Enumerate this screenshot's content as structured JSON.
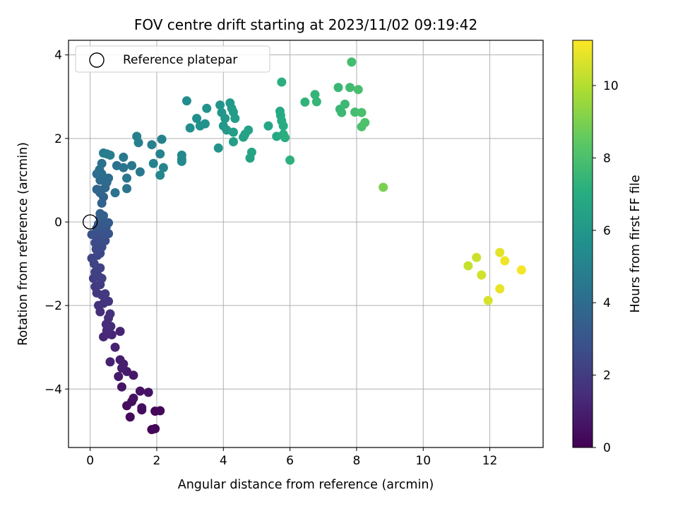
{
  "chart_data": {
    "type": "scatter",
    "title": "FOV centre drift starting at 2023/11/02 09:19:42",
    "xlabel": "Angular distance from reference (arcmin)",
    "ylabel": "Rotation from reference (arcmin)",
    "colorbar_label": "Hours from first FF file",
    "xlim": [
      -0.65,
      13.6
    ],
    "ylim": [
      -5.4,
      4.35
    ],
    "x_ticks": [
      0,
      2,
      4,
      6,
      8,
      10,
      12
    ],
    "y_ticks": [
      -4,
      -2,
      0,
      2,
      4
    ],
    "colorbar_range": [
      0,
      11.25
    ],
    "colorbar_ticks": [
      0,
      2,
      4,
      6,
      8,
      10
    ],
    "colormap": "viridis",
    "grid": true,
    "legend": {
      "placement": "top-left",
      "entries": [
        "Reference platepar"
      ]
    },
    "reference_point": {
      "x": 0.0,
      "y": 0.0
    },
    "points": [
      {
        "x": 1.85,
        "y": -4.97,
        "h": 0.1
      },
      {
        "x": 1.95,
        "y": -4.95,
        "h": 0.15
      },
      {
        "x": 1.95,
        "y": -4.53,
        "h": 0.2
      },
      {
        "x": 2.1,
        "y": -4.52,
        "h": 0.2
      },
      {
        "x": 1.2,
        "y": -4.67,
        "h": 0.3
      },
      {
        "x": 1.55,
        "y": -4.5,
        "h": 0.35
      },
      {
        "x": 1.55,
        "y": -4.45,
        "h": 0.4
      },
      {
        "x": 1.1,
        "y": -4.4,
        "h": 0.4
      },
      {
        "x": 1.25,
        "y": -4.3,
        "h": 0.45
      },
      {
        "x": 1.3,
        "y": -4.22,
        "h": 0.5
      },
      {
        "x": 1.5,
        "y": -4.05,
        "h": 0.55
      },
      {
        "x": 1.75,
        "y": -4.08,
        "h": 0.6
      },
      {
        "x": 0.95,
        "y": -3.95,
        "h": 0.7
      },
      {
        "x": 1.3,
        "y": -3.67,
        "h": 0.75
      },
      {
        "x": 0.85,
        "y": -3.7,
        "h": 0.8
      },
      {
        "x": 1.1,
        "y": -3.58,
        "h": 0.85
      },
      {
        "x": 0.95,
        "y": -3.5,
        "h": 0.9
      },
      {
        "x": 0.9,
        "y": -3.3,
        "h": 0.95
      },
      {
        "x": 1.0,
        "y": -3.4,
        "h": 1.0
      },
      {
        "x": 0.6,
        "y": -3.35,
        "h": 1.05
      },
      {
        "x": 0.75,
        "y": -3.0,
        "h": 1.1
      },
      {
        "x": 0.9,
        "y": -2.62,
        "h": 1.15
      },
      {
        "x": 0.4,
        "y": -2.75,
        "h": 1.2
      },
      {
        "x": 0.65,
        "y": -2.7,
        "h": 1.25
      },
      {
        "x": 0.55,
        "y": -2.68,
        "h": 1.3
      },
      {
        "x": 0.5,
        "y": -2.6,
        "h": 1.35
      },
      {
        "x": 0.62,
        "y": -2.5,
        "h": 1.4
      },
      {
        "x": 0.48,
        "y": -2.45,
        "h": 1.45
      },
      {
        "x": 0.55,
        "y": -2.3,
        "h": 1.5
      },
      {
        "x": 0.3,
        "y": -2.15,
        "h": 1.55
      },
      {
        "x": 0.6,
        "y": -2.2,
        "h": 1.6
      },
      {
        "x": 0.25,
        "y": -2.0,
        "h": 1.65
      },
      {
        "x": 0.4,
        "y": -1.95,
        "h": 1.7
      },
      {
        "x": 0.55,
        "y": -1.9,
        "h": 1.75
      },
      {
        "x": 0.2,
        "y": -1.7,
        "h": 1.8
      },
      {
        "x": 0.35,
        "y": -1.75,
        "h": 1.85
      },
      {
        "x": 0.45,
        "y": -1.72,
        "h": 1.9
      },
      {
        "x": 0.15,
        "y": -1.55,
        "h": 1.95
      },
      {
        "x": 0.3,
        "y": -1.5,
        "h": 2.0
      },
      {
        "x": 0.1,
        "y": -1.35,
        "h": 2.05
      },
      {
        "x": 0.25,
        "y": -1.3,
        "h": 2.1
      },
      {
        "x": 0.35,
        "y": -1.35,
        "h": 2.15
      },
      {
        "x": 0.15,
        "y": -1.2,
        "h": 2.2
      },
      {
        "x": 0.3,
        "y": -1.1,
        "h": 2.25
      },
      {
        "x": 0.12,
        "y": -1.0,
        "h": 2.3
      },
      {
        "x": 0.05,
        "y": -0.87,
        "h": 2.35
      },
      {
        "x": 0.22,
        "y": -0.8,
        "h": 2.4
      },
      {
        "x": 0.3,
        "y": -0.75,
        "h": 2.45
      },
      {
        "x": 0.18,
        "y": -0.65,
        "h": 2.5
      },
      {
        "x": 0.35,
        "y": -0.6,
        "h": 2.55
      },
      {
        "x": 0.15,
        "y": -0.5,
        "h": 2.6
      },
      {
        "x": 0.3,
        "y": -0.45,
        "h": 2.65
      },
      {
        "x": 0.45,
        "y": -0.45,
        "h": 2.7
      },
      {
        "x": 0.25,
        "y": -0.35,
        "h": 2.75
      },
      {
        "x": 0.05,
        "y": -0.3,
        "h": 2.8
      },
      {
        "x": 0.4,
        "y": -0.3,
        "h": 2.85
      },
      {
        "x": 0.55,
        "y": -0.28,
        "h": 2.9
      },
      {
        "x": 0.2,
        "y": -0.15,
        "h": 2.95
      },
      {
        "x": 0.35,
        "y": -0.15,
        "h": 3.0
      },
      {
        "x": 0.48,
        "y": -0.12,
        "h": 3.05
      },
      {
        "x": 0.25,
        "y": -0.05,
        "h": 3.1
      },
      {
        "x": 0.4,
        "y": -0.02,
        "h": 3.15
      },
      {
        "x": 0.55,
        "y": -0.02,
        "h": 3.2
      },
      {
        "x": 0.3,
        "y": 0.1,
        "h": 3.3
      },
      {
        "x": 0.4,
        "y": 0.15,
        "h": 3.4
      },
      {
        "x": 0.3,
        "y": 0.2,
        "h": 3.45
      },
      {
        "x": 0.35,
        "y": 0.45,
        "h": 3.55
      },
      {
        "x": 0.4,
        "y": 0.6,
        "h": 3.6
      },
      {
        "x": 0.3,
        "y": 0.7,
        "h": 3.65
      },
      {
        "x": 0.2,
        "y": 0.78,
        "h": 3.7
      },
      {
        "x": 0.25,
        "y": 0.77,
        "h": 3.75
      },
      {
        "x": 0.45,
        "y": 0.82,
        "h": 3.8
      },
      {
        "x": 0.5,
        "y": 0.95,
        "h": 3.85
      },
      {
        "x": 0.3,
        "y": 1.0,
        "h": 3.9
      },
      {
        "x": 0.4,
        "y": 1.05,
        "h": 3.95
      },
      {
        "x": 0.55,
        "y": 1.05,
        "h": 4.0
      },
      {
        "x": 0.2,
        "y": 1.15,
        "h": 4.05
      },
      {
        "x": 0.35,
        "y": 1.15,
        "h": 4.1
      },
      {
        "x": 0.28,
        "y": 1.25,
        "h": 4.15
      },
      {
        "x": 0.35,
        "y": 1.4,
        "h": 4.2
      },
      {
        "x": 0.8,
        "y": 1.35,
        "h": 4.25
      },
      {
        "x": 0.75,
        "y": 0.7,
        "h": 4.3
      },
      {
        "x": 1.1,
        "y": 0.8,
        "h": 4.35
      },
      {
        "x": 1.0,
        "y": 1.3,
        "h": 4.4
      },
      {
        "x": 1.1,
        "y": 1.05,
        "h": 4.45
      },
      {
        "x": 1.25,
        "y": 1.35,
        "h": 4.5
      },
      {
        "x": 1.5,
        "y": 1.2,
        "h": 4.55
      },
      {
        "x": 1.0,
        "y": 1.55,
        "h": 4.6
      },
      {
        "x": 0.4,
        "y": 1.65,
        "h": 4.65
      },
      {
        "x": 0.5,
        "y": 1.63,
        "h": 4.7
      },
      {
        "x": 0.6,
        "y": 1.6,
        "h": 4.75
      },
      {
        "x": 1.4,
        "y": 2.05,
        "h": 4.8
      },
      {
        "x": 1.45,
        "y": 1.9,
        "h": 4.85
      },
      {
        "x": 1.85,
        "y": 1.85,
        "h": 4.9
      },
      {
        "x": 2.15,
        "y": 1.98,
        "h": 4.95
      },
      {
        "x": 2.1,
        "y": 1.63,
        "h": 5.0
      },
      {
        "x": 1.9,
        "y": 1.4,
        "h": 5.05
      },
      {
        "x": 2.2,
        "y": 1.3,
        "h": 5.1
      },
      {
        "x": 2.1,
        "y": 1.12,
        "h": 5.15
      },
      {
        "x": 2.75,
        "y": 1.6,
        "h": 5.3
      },
      {
        "x": 2.75,
        "y": 1.5,
        "h": 5.35
      },
      {
        "x": 2.75,
        "y": 1.45,
        "h": 5.4
      },
      {
        "x": 2.9,
        "y": 2.9,
        "h": 5.5
      },
      {
        "x": 3.0,
        "y": 2.25,
        "h": 5.55
      },
      {
        "x": 3.2,
        "y": 2.48,
        "h": 5.6
      },
      {
        "x": 3.3,
        "y": 2.3,
        "h": 5.65
      },
      {
        "x": 3.45,
        "y": 2.35,
        "h": 5.7
      },
      {
        "x": 3.5,
        "y": 2.72,
        "h": 5.75
      },
      {
        "x": 3.85,
        "y": 1.77,
        "h": 5.8
      },
      {
        "x": 3.9,
        "y": 2.8,
        "h": 5.85
      },
      {
        "x": 3.95,
        "y": 2.62,
        "h": 5.9
      },
      {
        "x": 4.0,
        "y": 2.3,
        "h": 5.95
      },
      {
        "x": 4.05,
        "y": 2.48,
        "h": 6.0
      },
      {
        "x": 4.1,
        "y": 2.2,
        "h": 6.05
      },
      {
        "x": 4.2,
        "y": 2.85,
        "h": 6.1
      },
      {
        "x": 4.25,
        "y": 2.72,
        "h": 6.15
      },
      {
        "x": 4.3,
        "y": 2.63,
        "h": 6.2
      },
      {
        "x": 4.35,
        "y": 2.48,
        "h": 6.25
      },
      {
        "x": 4.3,
        "y": 2.15,
        "h": 6.3
      },
      {
        "x": 4.3,
        "y": 1.92,
        "h": 6.35
      },
      {
        "x": 4.6,
        "y": 2.03,
        "h": 6.4
      },
      {
        "x": 4.65,
        "y": 2.1,
        "h": 6.45
      },
      {
        "x": 4.75,
        "y": 2.2,
        "h": 6.5
      },
      {
        "x": 4.8,
        "y": 1.53,
        "h": 6.55
      },
      {
        "x": 4.85,
        "y": 1.67,
        "h": 6.6
      },
      {
        "x": 5.35,
        "y": 2.3,
        "h": 6.7
      },
      {
        "x": 5.6,
        "y": 2.05,
        "h": 6.8
      },
      {
        "x": 5.7,
        "y": 2.65,
        "h": 6.85
      },
      {
        "x": 5.72,
        "y": 2.55,
        "h": 6.9
      },
      {
        "x": 5.75,
        "y": 2.42,
        "h": 6.95
      },
      {
        "x": 5.8,
        "y": 2.3,
        "h": 7.0
      },
      {
        "x": 5.8,
        "y": 2.1,
        "h": 7.05
      },
      {
        "x": 5.85,
        "y": 2.02,
        "h": 7.1
      },
      {
        "x": 5.75,
        "y": 3.35,
        "h": 7.15
      },
      {
        "x": 6.0,
        "y": 1.48,
        "h": 7.2
      },
      {
        "x": 6.45,
        "y": 2.87,
        "h": 7.3
      },
      {
        "x": 6.75,
        "y": 3.05,
        "h": 7.4
      },
      {
        "x": 6.8,
        "y": 2.88,
        "h": 7.45
      },
      {
        "x": 7.45,
        "y": 3.22,
        "h": 7.5
      },
      {
        "x": 7.5,
        "y": 2.7,
        "h": 7.55
      },
      {
        "x": 7.55,
        "y": 2.62,
        "h": 7.6
      },
      {
        "x": 7.65,
        "y": 2.82,
        "h": 7.65
      },
      {
        "x": 7.8,
        "y": 3.22,
        "h": 7.75
      },
      {
        "x": 7.85,
        "y": 3.83,
        "h": 7.8
      },
      {
        "x": 7.95,
        "y": 2.63,
        "h": 7.85
      },
      {
        "x": 8.05,
        "y": 3.17,
        "h": 7.9
      },
      {
        "x": 8.15,
        "y": 2.62,
        "h": 7.95
      },
      {
        "x": 8.15,
        "y": 2.28,
        "h": 8.0
      },
      {
        "x": 8.25,
        "y": 2.38,
        "h": 8.05
      },
      {
        "x": 8.8,
        "y": 0.83,
        "h": 9.0
      },
      {
        "x": 11.35,
        "y": -1.05,
        "h": 10.3
      },
      {
        "x": 11.6,
        "y": -0.85,
        "h": 10.4
      },
      {
        "x": 11.75,
        "y": -1.27,
        "h": 10.5
      },
      {
        "x": 11.95,
        "y": -1.88,
        "h": 10.6
      },
      {
        "x": 12.3,
        "y": -0.73,
        "h": 10.8
      },
      {
        "x": 12.3,
        "y": -1.6,
        "h": 10.9
      },
      {
        "x": 12.45,
        "y": -0.93,
        "h": 11.0
      },
      {
        "x": 12.95,
        "y": -1.15,
        "h": 11.1
      }
    ]
  }
}
